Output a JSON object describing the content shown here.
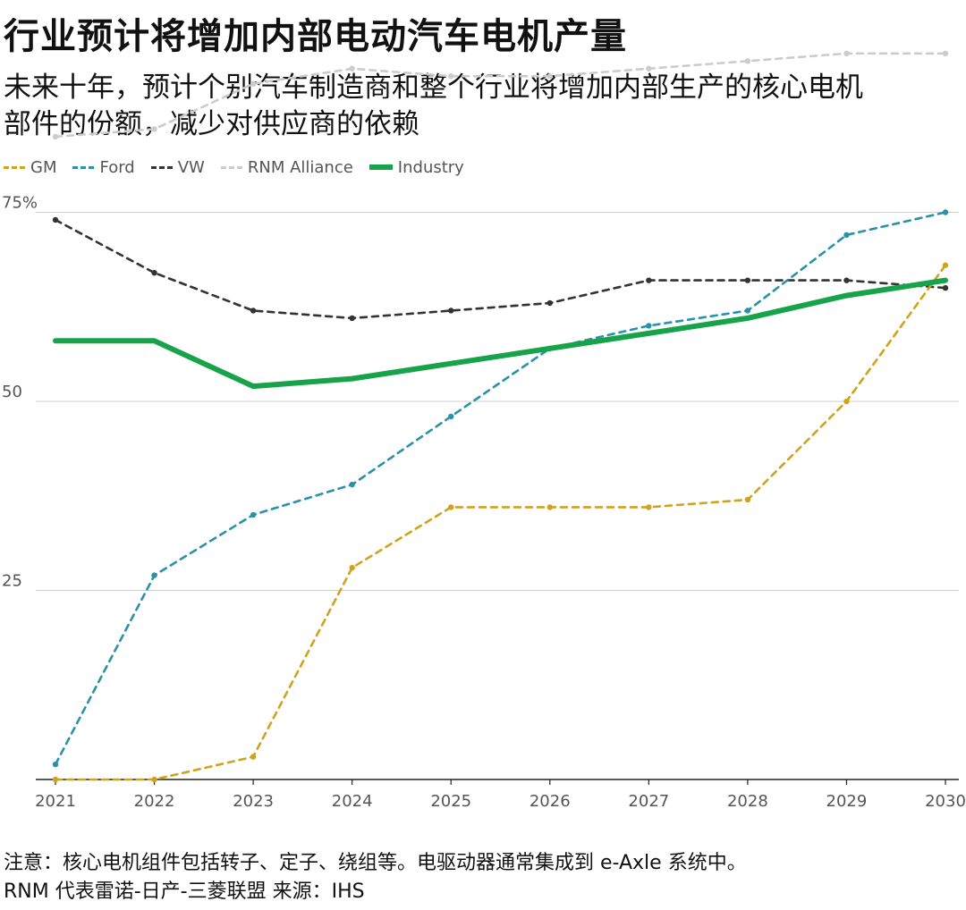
{
  "title": "行业预计将增加内部电动汽车电机产量",
  "subtitle": "未来十年，预计个别汽车制造商和整个行业将增加内部生产的核心电机部件的份额，减少对供应商的依赖",
  "note_line1": "注意：核心电机组件包括转子、定子、绕组等。电驱动器通常集成到 e-Axle 系统中。",
  "note_line2": "RNM 代表雷诺-日产-三菱联盟 来源：IHS",
  "chart_data": {
    "type": "line",
    "x": [
      "2021",
      "2022",
      "2023",
      "2024",
      "2025",
      "2026",
      "2027",
      "2028",
      "2029",
      "2030"
    ],
    "ylim": [
      0,
      100
    ],
    "y_ticks": [
      {
        "value": 75,
        "label": "75%"
      },
      {
        "value": 50,
        "label": "50"
      },
      {
        "value": 25,
        "label": "25"
      }
    ],
    "grid": true,
    "legend_position": "top-left",
    "series": [
      {
        "name": "GM",
        "color": "#d1a21a",
        "style": "dashed",
        "values": [
          0,
          0,
          3,
          28,
          36,
          36,
          36,
          37,
          50,
          68
        ]
      },
      {
        "name": "Ford",
        "color": "#2a92a8",
        "style": "dashed",
        "values": [
          2,
          27,
          35,
          39,
          48,
          57,
          60,
          62,
          72,
          75
        ]
      },
      {
        "name": "VW",
        "color": "#333333",
        "style": "dashed",
        "values": [
          74,
          67,
          62,
          61,
          62,
          63,
          66,
          66,
          66,
          65
        ]
      },
      {
        "name": "RNM Alliance",
        "color": "#cccccc",
        "style": "dashed",
        "values": [
          85,
          86,
          92,
          94,
          93,
          93,
          94,
          95,
          96,
          96
        ]
      },
      {
        "name": "Industry",
        "color": "#17a34a",
        "style": "solid",
        "values": [
          58,
          58,
          52,
          53,
          55,
          57,
          59,
          61,
          64,
          66
        ]
      }
    ]
  }
}
